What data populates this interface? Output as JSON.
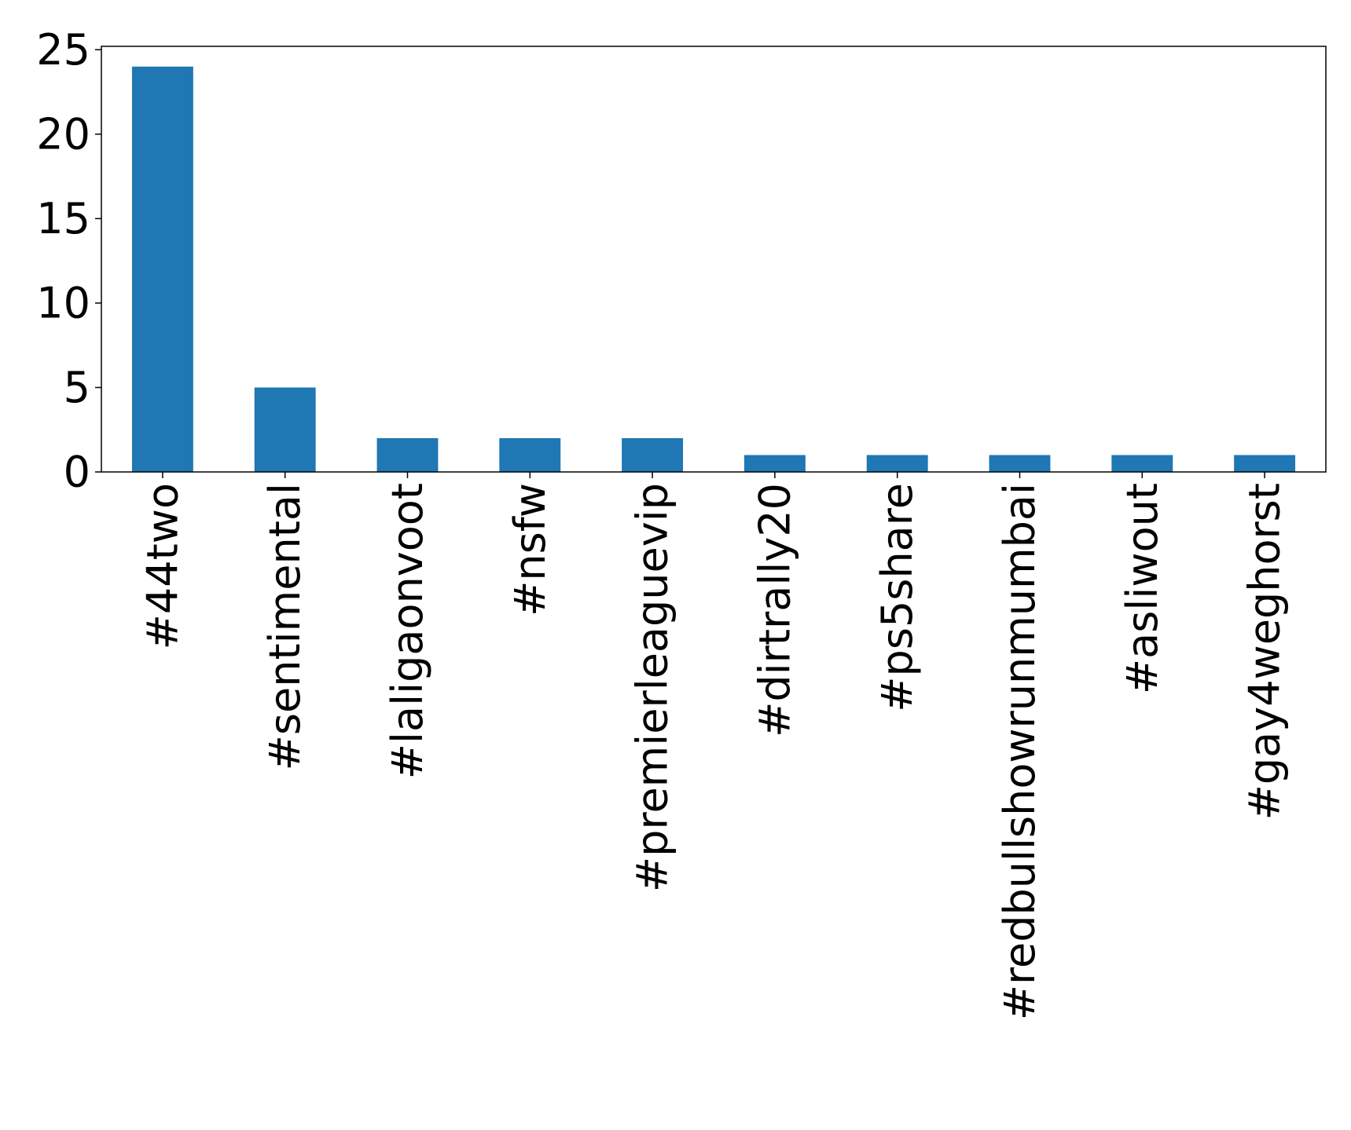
{
  "chart_data": {
    "type": "bar",
    "categories": [
      "#44two",
      "#sentimental",
      "#laligaonvoot",
      "#nsfw",
      "#premierleaguevip",
      "#dirtrally20",
      "#ps5share",
      "#redbullshowrunmumbai",
      "#asliwout",
      "#gay4weghorst"
    ],
    "values": [
      24,
      5,
      2,
      2,
      2,
      1,
      1,
      1,
      1,
      1
    ],
    "title": "",
    "xlabel": "",
    "ylabel": "",
    "ylim": [
      0,
      25.2
    ],
    "yticks": [
      0,
      5,
      10,
      15,
      20,
      25
    ],
    "grid": false,
    "legend": "none",
    "bar_color": "#1f77b4"
  }
}
